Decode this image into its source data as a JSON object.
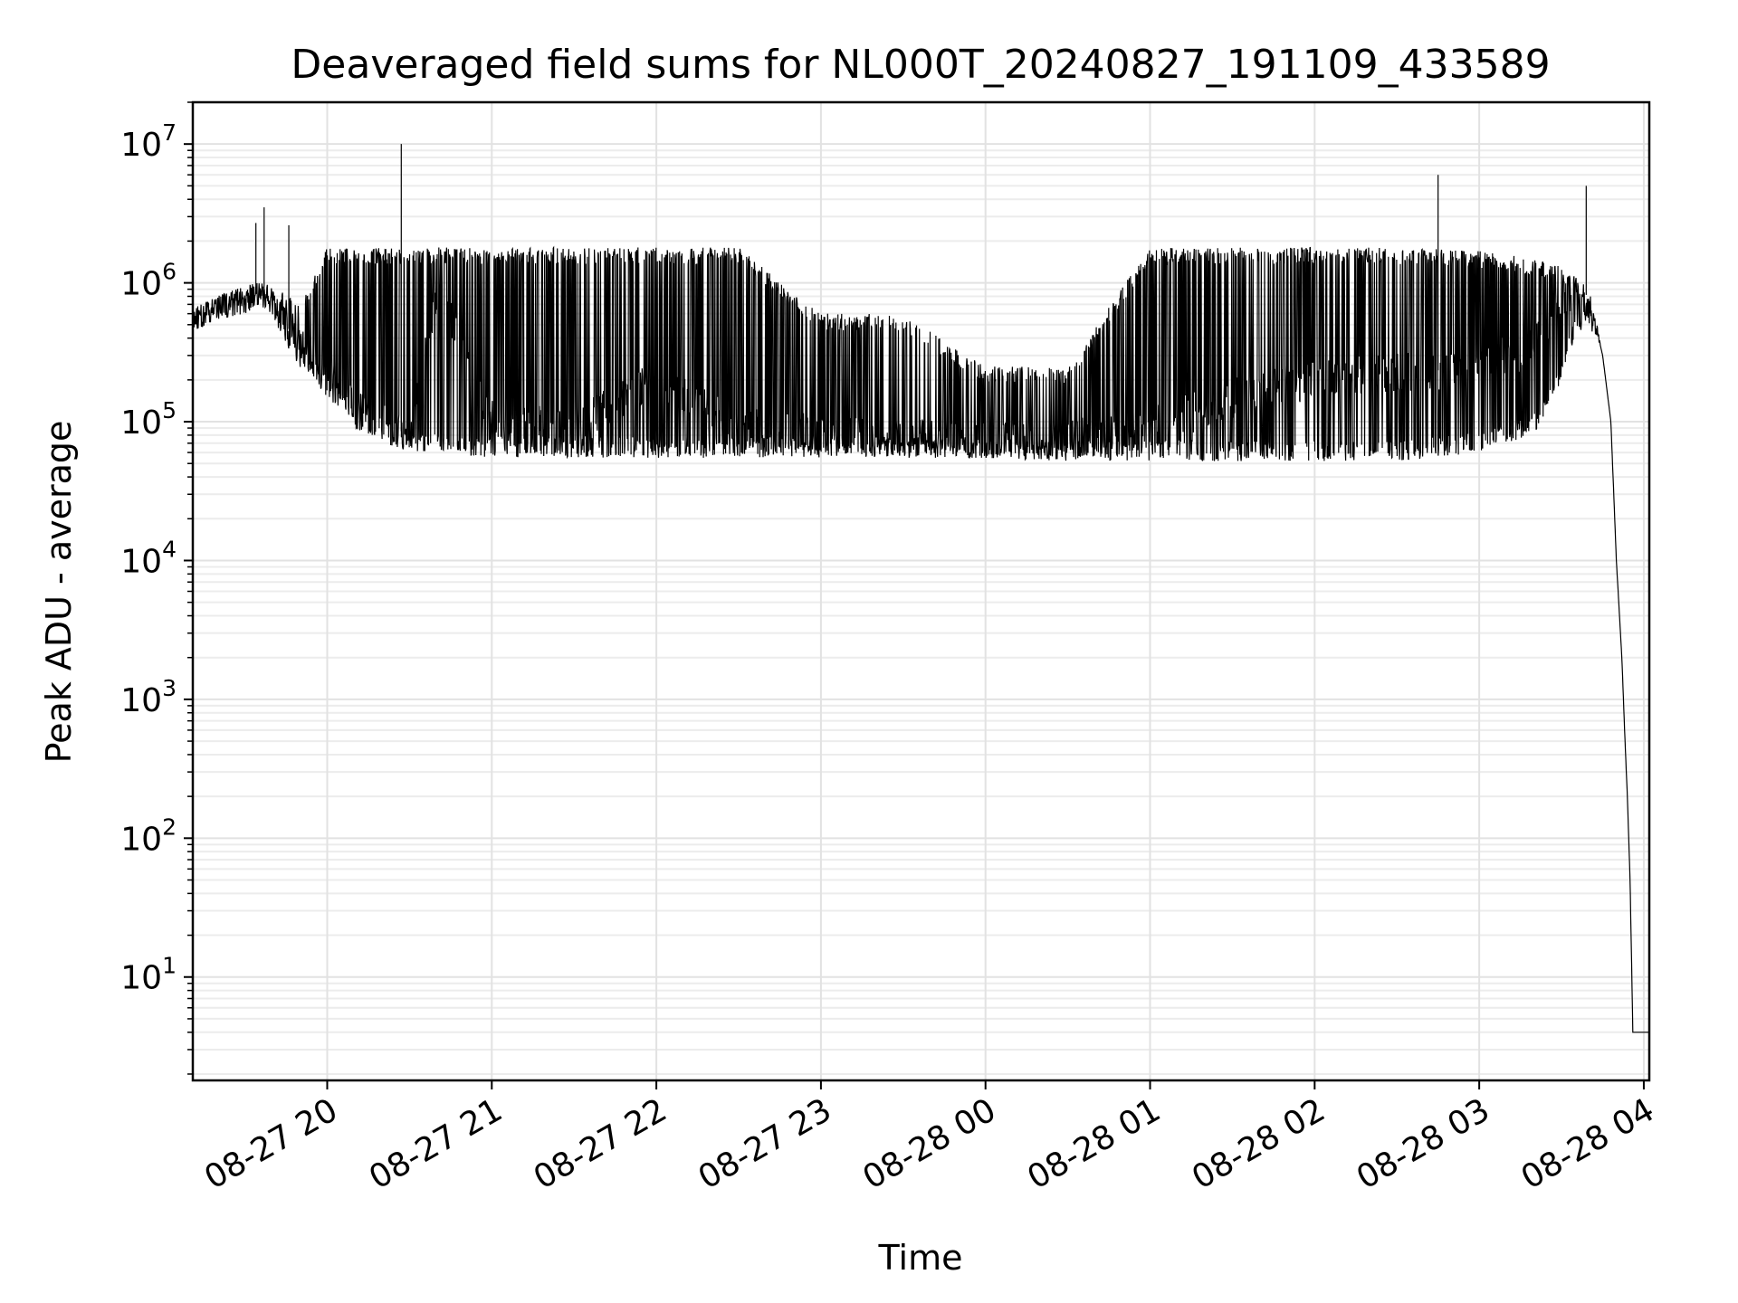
{
  "chart_data": {
    "type": "line",
    "title": "Deaveraged field sums for NL000T_20240827_191109_433589",
    "xlabel": "Time",
    "ylabel": "Peak ADU - average",
    "yscale": "log",
    "ylim": [
      1.8,
      20000000
    ],
    "xlim": [
      "08-27 19:11",
      "08-28 04:02"
    ],
    "grid": true,
    "line_color": "#000000",
    "x_ticks": [
      "08-27 20",
      "08-27 21",
      "08-27 22",
      "08-27 23",
      "08-28 00",
      "08-28 01",
      "08-28 02",
      "08-28 03",
      "08-28 04"
    ],
    "y_ticks": [
      {
        "base": "10",
        "exp": "1",
        "value": 10
      },
      {
        "base": "10",
        "exp": "2",
        "value": 100
      },
      {
        "base": "10",
        "exp": "3",
        "value": 1000
      },
      {
        "base": "10",
        "exp": "4",
        "value": 10000
      },
      {
        "base": "10",
        "exp": "5",
        "value": 100000
      },
      {
        "base": "10",
        "exp": "6",
        "value": 1000000
      },
      {
        "base": "10",
        "exp": "7",
        "value": 10000000
      }
    ],
    "series": [
      {
        "x": [
          "08-27 19:11",
          "08-27 19:20",
          "08-27 19:30",
          "08-27 19:35",
          "08-27 19:40",
          "08-27 19:45",
          "08-27 19:50",
          "08-27 20:00",
          "08-27 20:05",
          "08-27 20:10",
          "08-27 20:20",
          "08-27 20:30",
          "08-27 20:40",
          "08-27 21:00",
          "08-27 21:30",
          "08-27 22:00",
          "08-27 22:30",
          "08-27 23:00",
          "08-27 23:30",
          "08-28 00:00",
          "08-28 00:30",
          "08-28 01:00",
          "08-28 01:30",
          "08-28 02:00",
          "08-28 02:30",
          "08-28 03:00",
          "08-28 03:20",
          "08-28 03:30",
          "08-28 03:35",
          "08-28 03:40",
          "08-28 03:45",
          "08-28 03:48",
          "08-28 03:50",
          "08-28 03:52",
          "08-28 03:53",
          "08-28 03:54",
          "08-28 03:55",
          "08-28 03:56",
          "08-28 03:58",
          "08-28 04:02"
        ],
        "y": [
          500000,
          650000,
          800000,
          900000,
          700000,
          500000,
          350000,
          250000,
          180000,
          120000,
          100000,
          80000,
          900000,
          100000,
          90000,
          200000,
          90000,
          80000,
          75000,
          70000,
          75000,
          90000,
          150000,
          200000,
          220000,
          250000,
          350000,
          700000,
          900000,
          800000,
          300000,
          100000,
          10000,
          2000,
          600,
          200,
          50,
          4,
          4,
          4
        ],
        "band_low": [
          450000,
          550000,
          600000,
          700000,
          600000,
          350000,
          250000,
          150000,
          120000,
          90000,
          70000,
          60000,
          60000,
          55000,
          55000,
          55000,
          55000,
          55000,
          55000,
          55000,
          52000,
          52000,
          52000,
          52000,
          52000,
          60000,
          80000,
          200000,
          400000,
          500000,
          300000,
          100000,
          10000,
          2000,
          600,
          200,
          50,
          4,
          4,
          4
        ],
        "band_high": [
          650000,
          800000,
          950000,
          1000000,
          950000,
          850000,
          700000,
          1800000,
          1800000,
          1800000,
          1800000,
          1800000,
          1800000,
          1800000,
          1800000,
          1800000,
          1800000,
          600000,
          600000,
          250000,
          250000,
          1800000,
          1800000,
          1800000,
          1800000,
          1700000,
          1500000,
          1300000,
          1100000,
          900000,
          300000,
          100000,
          10000,
          2000,
          600,
          200,
          50,
          4,
          4,
          4
        ],
        "spikes": [
          {
            "x": "08-27 19:34",
            "y": 2700000
          },
          {
            "x": "08-27 19:37",
            "y": 3500000
          },
          {
            "x": "08-27 19:46",
            "y": 2600000
          },
          {
            "x": "08-27 20:27",
            "y": 10000000
          },
          {
            "x": "08-28 02:45",
            "y": 6000000
          },
          {
            "x": "08-28 03:39",
            "y": 5000000
          }
        ]
      }
    ]
  }
}
